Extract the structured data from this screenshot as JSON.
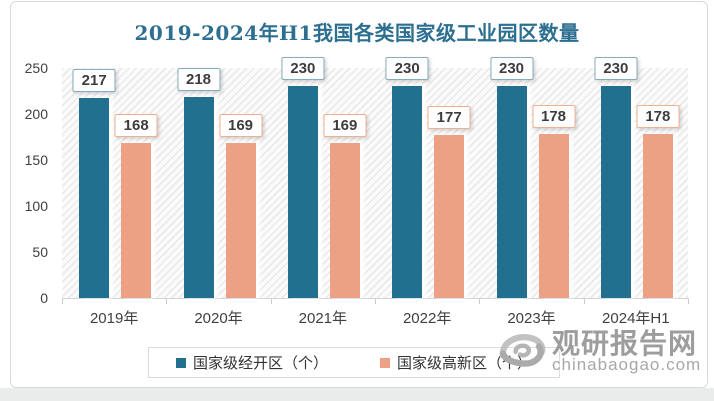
{
  "chart_data": {
    "type": "bar",
    "title": "2019-2024年H1我国各类国家级工业园区数量",
    "categories": [
      "2019年",
      "2020年",
      "2021年",
      "2022年",
      "2023年",
      "2024年H1"
    ],
    "series": [
      {
        "name": "国家级经开区（个）",
        "color": "#21708f",
        "label_border_color": "#86abbd",
        "values": [
          217,
          218,
          230,
          230,
          230,
          230
        ]
      },
      {
        "name": "国家级高新区（个）",
        "color": "#eca184",
        "label_border_color": "#f0b093",
        "values": [
          168,
          169,
          169,
          177,
          178,
          178
        ]
      }
    ],
    "ylim": [
      0,
      250
    ],
    "yticks": [
      0,
      50,
      100,
      150,
      200,
      250
    ],
    "grid": false,
    "legend_position": "bottom",
    "plot_background": "diagonal-hatch",
    "title_color": "#2c6f90"
  },
  "watermark": {
    "logo": "swirl-eye-logo",
    "site_name": "观研报告网",
    "site_url": "chinabaogao.com",
    "color": "#9d9d9d"
  }
}
